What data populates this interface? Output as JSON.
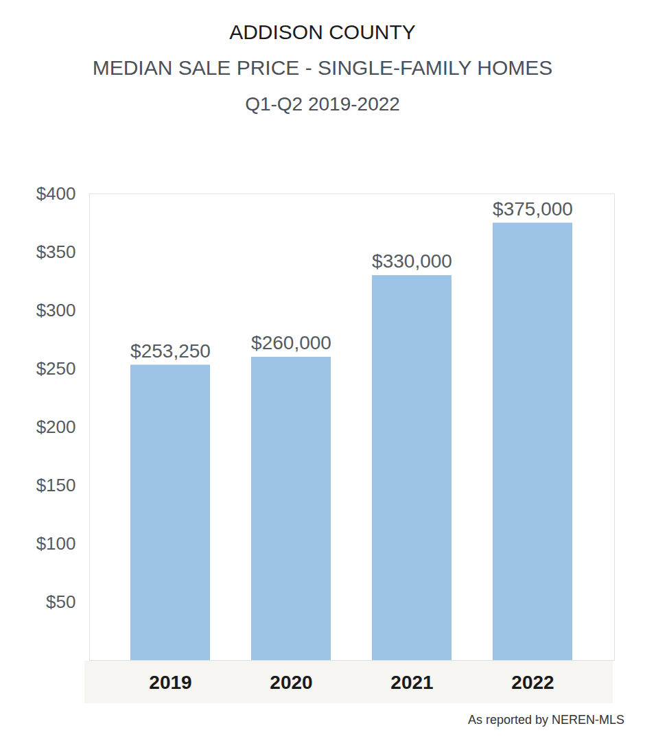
{
  "chart_data": {
    "type": "bar",
    "title": "ADDISON COUNTY",
    "subtitle": "MEDIAN SALE PRICE - SINGLE-FAMILY HOMES",
    "subtitle2": "Q1-Q2 2019-2022",
    "note": "As reported by NEREN-MLS",
    "categories": [
      "2019",
      "2020",
      "2021",
      "2022"
    ],
    "values": [
      253.25,
      260,
      330,
      375
    ],
    "value_labels": [
      "$253,250",
      "$260,000",
      "$330,000",
      "$375,000"
    ],
    "color": "#9dc3e6",
    "ylim": [
      0,
      400
    ],
    "yticks": [
      {
        "value": 50,
        "label": "$50"
      },
      {
        "value": 100,
        "label": "$100"
      },
      {
        "value": 150,
        "label": "$150"
      },
      {
        "value": 200,
        "label": "$200"
      },
      {
        "value": 250,
        "label": "$250"
      },
      {
        "value": 300,
        "label": "$300"
      },
      {
        "value": 350,
        "label": "$350"
      },
      {
        "value": 400,
        "label": "$400"
      }
    ],
    "grid": false,
    "data_labels": true
  }
}
